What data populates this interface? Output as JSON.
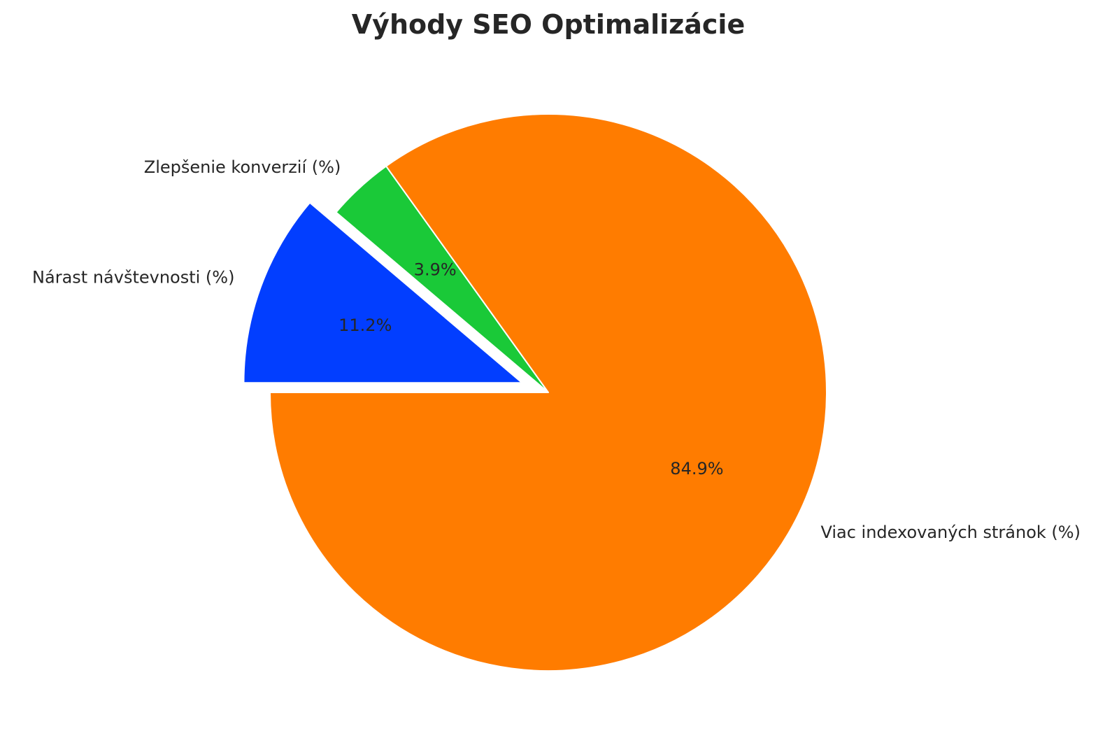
{
  "chart_data": {
    "type": "pie",
    "title": "Výhody SEO Optimalizácie",
    "categories": [
      "Nárast návštevnosti (%)",
      "Zlepšenie konverzií (%)",
      "Viac indexovaných stránok (%)"
    ],
    "values": [
      11.2,
      3.9,
      84.9
    ],
    "value_labels": [
      "11.2%",
      "3.9%",
      "84.9%"
    ],
    "colors": [
      "#023eff",
      "#1ac938",
      "#ff7c00"
    ],
    "exploded": [
      true,
      false,
      false
    ],
    "start_angle": 180,
    "direction": "clockwise",
    "legend": "none"
  }
}
